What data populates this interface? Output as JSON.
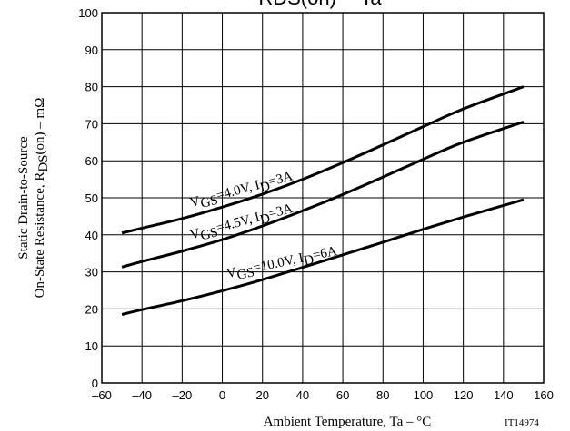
{
  "chart_data": {
    "type": "line",
    "title": "RDS(on) -- Ta",
    "xlabel": "Ambient Temperature, Ta  –  °C",
    "ylabel_line1": "Static Drain-to-Source",
    "ylabel_line2": "On-State Resistance, R",
    "ylabel_sub": "DS",
    "ylabel_tail": "(on)  –  mΩ",
    "xlim": [
      -60,
      160
    ],
    "ylim": [
      0,
      100
    ],
    "x_ticks": [
      -60,
      -40,
      -20,
      0,
      20,
      40,
      60,
      80,
      100,
      120,
      140,
      160
    ],
    "x_tick_labels": [
      "–60",
      "–40",
      "–20",
      "0",
      "20",
      "40",
      "60",
      "80",
      "100",
      "120",
      "140",
      "160"
    ],
    "y_ticks": [
      0,
      10,
      20,
      30,
      40,
      50,
      60,
      70,
      80,
      90,
      100
    ],
    "grid": true,
    "figure_id": "IT14974",
    "series": [
      {
        "label_parts": [
          "V",
          "GS",
          "=4.0V, I",
          "D",
          "=3A"
        ],
        "x": [
          -50,
          -40,
          -20,
          0,
          20,
          40,
          60,
          80,
          100,
          120,
          150
        ],
        "y": [
          40.5,
          41.8,
          44.4,
          47.5,
          51.0,
          55.0,
          59.5,
          64.3,
          69.2,
          74.0,
          80.0
        ]
      },
      {
        "label_parts": [
          "V",
          "GS",
          "=4.5V, I",
          "D",
          "=3A"
        ],
        "x": [
          -50,
          -40,
          -20,
          0,
          20,
          40,
          60,
          80,
          100,
          120,
          150
        ],
        "y": [
          31.3,
          32.8,
          35.6,
          38.7,
          42.4,
          46.5,
          50.9,
          55.6,
          60.4,
          65.0,
          70.5
        ]
      },
      {
        "label_parts": [
          "V",
          "GS",
          "=10.0V, I",
          "D",
          "=6A"
        ],
        "x": [
          -50,
          -40,
          -20,
          0,
          20,
          40,
          60,
          80,
          100,
          120,
          150
        ],
        "y": [
          18.5,
          19.8,
          22.2,
          24.9,
          27.9,
          31.2,
          34.6,
          38.0,
          41.5,
          44.8,
          49.5
        ]
      }
    ]
  }
}
